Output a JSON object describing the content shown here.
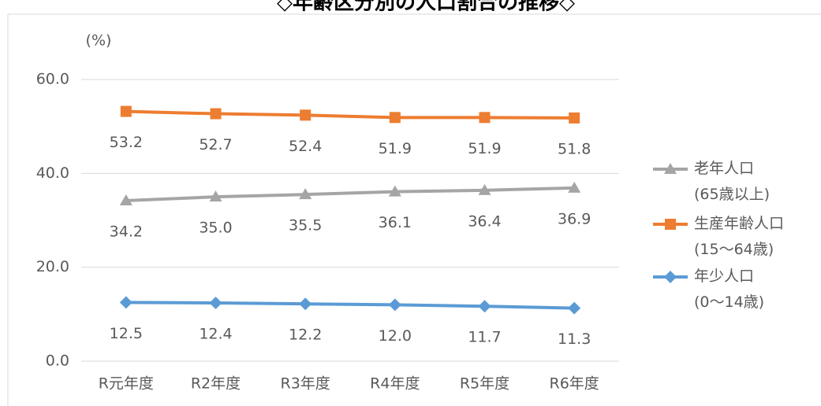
{
  "chart_data": {
    "type": "line",
    "title": "◇年齢区分別の人口割合の推移◇",
    "y_unit": "(%)",
    "categories": [
      "R元年度",
      "R2年度",
      "R3年度",
      "R4年度",
      "R5年度",
      "R6年度"
    ],
    "series": [
      {
        "name": "老年人口\n(65歳以上)",
        "color": "#a5a5a5",
        "marker": "triangle",
        "values": [
          34.2,
          35.0,
          35.5,
          36.1,
          36.4,
          36.9
        ],
        "value_labels": [
          "34.2",
          "35.0",
          "35.5",
          "36.1",
          "36.4",
          "36.9"
        ]
      },
      {
        "name": "生産年齢人口\n(15～64歳)",
        "color": "#ed7d31",
        "marker": "square",
        "values": [
          53.2,
          52.7,
          52.4,
          51.9,
          51.9,
          51.8
        ],
        "value_labels": [
          "53.2",
          "52.7",
          "52.4",
          "51.9",
          "51.9",
          "51.8"
        ]
      },
      {
        "name": "年少人口\n(0～14歳)",
        "color": "#5b9bd5",
        "marker": "diamond",
        "values": [
          12.5,
          12.4,
          12.2,
          12.0,
          11.7,
          11.3
        ],
        "value_labels": [
          "12.5",
          "12.4",
          "12.2",
          "12.0",
          "11.7",
          "11.3"
        ]
      }
    ],
    "ylim": [
      0,
      60
    ],
    "yticks": [
      {
        "value": 0,
        "label": "0.0"
      },
      {
        "value": 20,
        "label": "20.0"
      },
      {
        "value": 40,
        "label": "40.0"
      },
      {
        "value": 60,
        "label": "60.0"
      }
    ],
    "grid": true,
    "legend": "right"
  }
}
